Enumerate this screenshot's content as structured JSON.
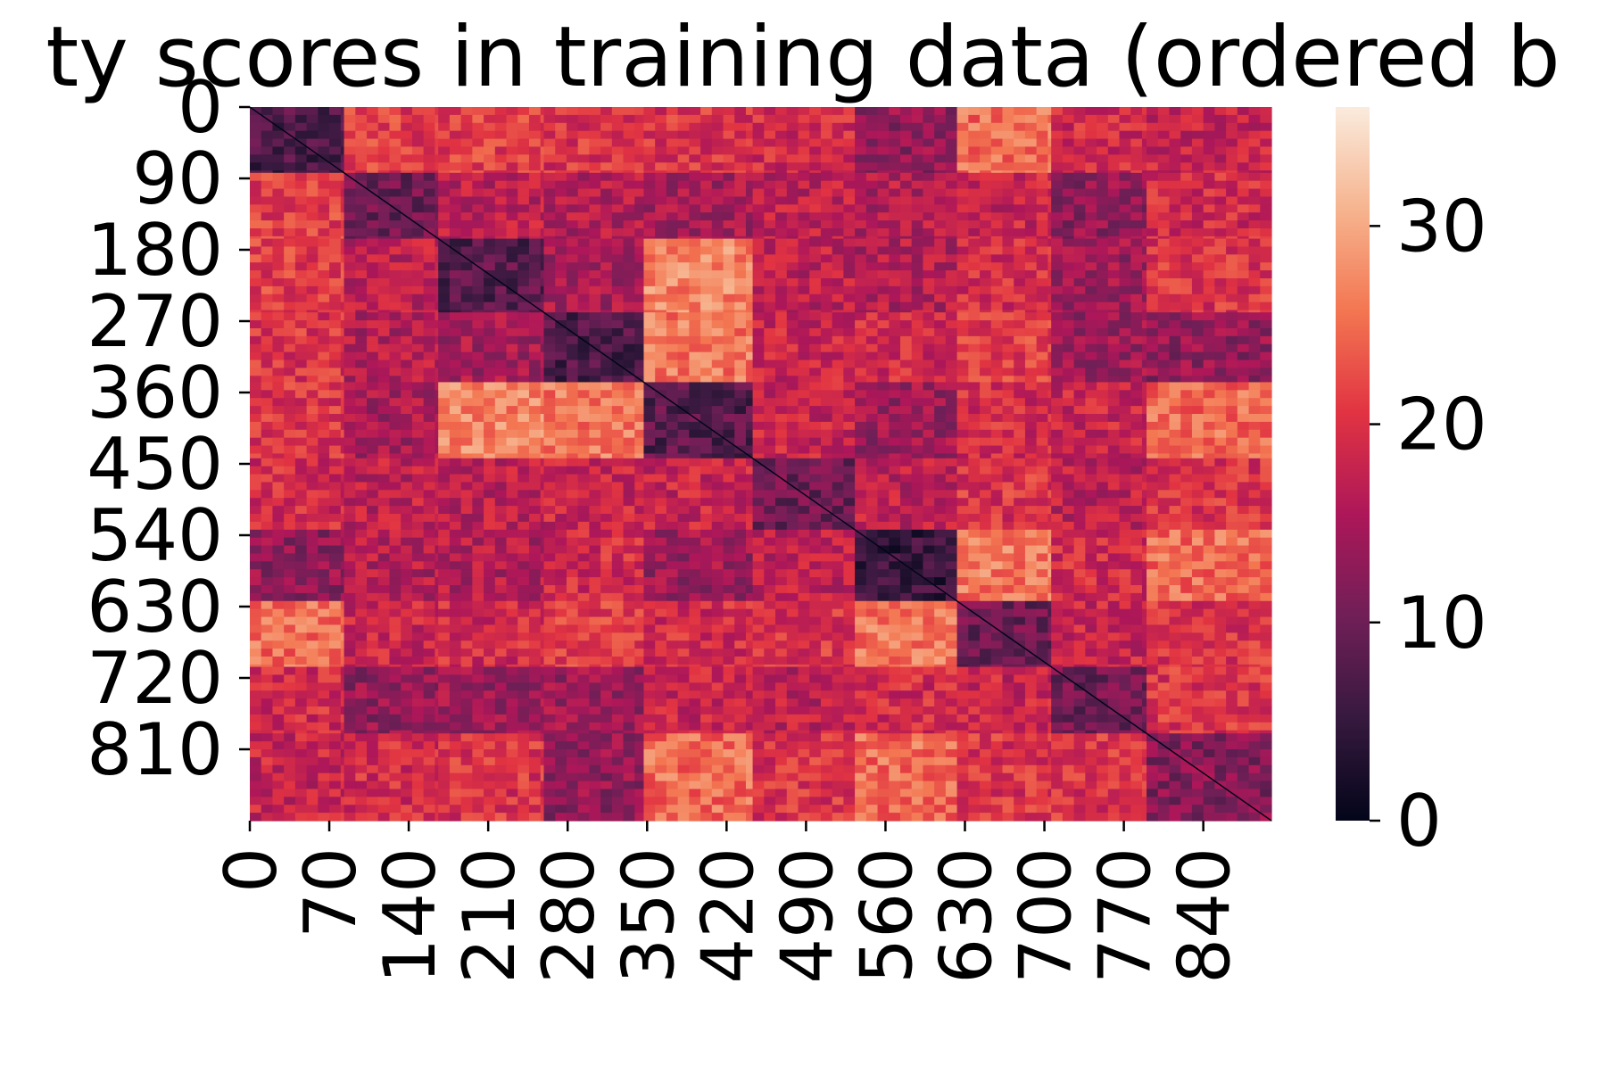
{
  "chart_data": {
    "type": "heatmap",
    "title": "ty scores in training data (ordered b",
    "xlabel": "",
    "ylabel": "",
    "n": 900,
    "x_tick_labels": [
      "0",
      "70",
      "140",
      "210",
      "280",
      "350",
      "420",
      "490",
      "560",
      "630",
      "700",
      "770",
      "840"
    ],
    "y_tick_labels": [
      "0",
      "90",
      "180",
      "270",
      "360",
      "450",
      "540",
      "630",
      "720",
      "810"
    ],
    "colorbar": {
      "min": 0,
      "max": 36,
      "tick_labels": [
        "0",
        "10",
        "20",
        "30"
      ],
      "colors": [
        "#03051a",
        "#36193e",
        "#701f57",
        "#ad1759",
        "#e13342",
        "#f37651",
        "#f6b48f",
        "#faebdd"
      ]
    },
    "clusters": [
      {
        "start": 0,
        "end": 83
      },
      {
        "start": 83,
        "end": 166
      },
      {
        "start": 166,
        "end": 259
      },
      {
        "start": 259,
        "end": 347
      },
      {
        "start": 347,
        "end": 443
      },
      {
        "start": 443,
        "end": 533
      },
      {
        "start": 533,
        "end": 623
      },
      {
        "start": 623,
        "end": 706
      },
      {
        "start": 706,
        "end": 790
      },
      {
        "start": 790,
        "end": 900
      }
    ],
    "within_cluster_means": [
      7,
      10,
      8,
      7,
      8,
      10,
      5,
      10,
      10,
      12
    ],
    "between_cluster_means": [
      [
        7,
        21,
        21,
        20,
        20,
        19,
        13,
        25,
        19,
        18
      ],
      [
        21,
        10,
        17,
        16,
        15,
        17,
        16,
        18,
        13,
        19
      ],
      [
        21,
        17,
        8,
        15,
        27,
        17,
        16,
        19,
        14,
        20
      ],
      [
        20,
        16,
        15,
        7,
        26,
        18,
        19,
        21,
        14,
        13
      ],
      [
        20,
        15,
        27,
        26,
        8,
        18,
        14,
        19,
        18,
        25
      ],
      [
        19,
        17,
        17,
        18,
        18,
        10,
        17,
        20,
        17,
        20
      ],
      [
        13,
        16,
        16,
        19,
        14,
        17,
        5,
        26,
        19,
        25
      ],
      [
        25,
        18,
        19,
        21,
        19,
        20,
        26,
        10,
        18,
        20
      ],
      [
        19,
        13,
        14,
        14,
        18,
        17,
        19,
        18,
        10,
        20
      ],
      [
        18,
        19,
        20,
        13,
        25,
        20,
        25,
        20,
        20,
        12
      ]
    ]
  }
}
